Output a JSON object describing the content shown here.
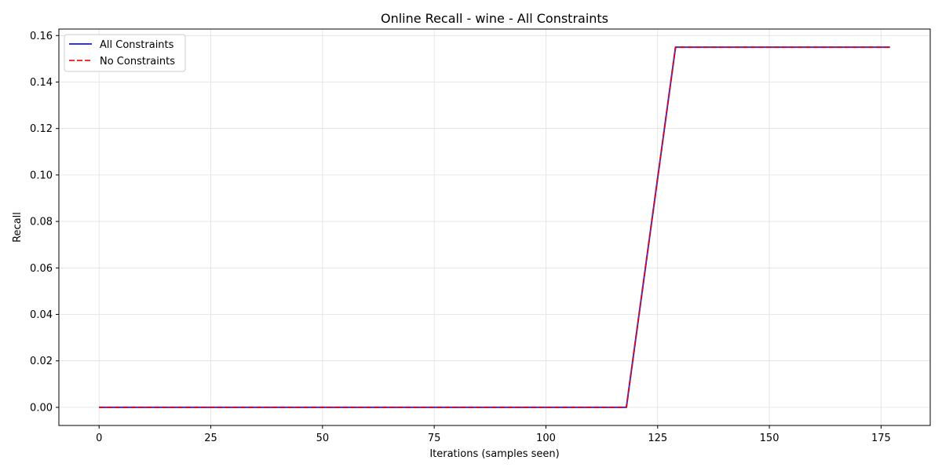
{
  "chart_data": {
    "type": "line",
    "title": "Online Recall - wine - All Constraints",
    "xlabel": "Iterations (samples seen)",
    "ylabel": "Recall",
    "xlim": [
      -9,
      186
    ],
    "ylim": [
      -0.0078,
      0.1628
    ],
    "xticks": [
      0,
      25,
      50,
      75,
      100,
      125,
      150,
      175
    ],
    "yticks": [
      0.0,
      0.02,
      0.04,
      0.06,
      0.08,
      0.1,
      0.12,
      0.14,
      0.16
    ],
    "ytick_labels": [
      "0.00",
      "0.02",
      "0.04",
      "0.06",
      "0.08",
      "0.10",
      "0.12",
      "0.14",
      "0.16"
    ],
    "grid": true,
    "legend_position": "top-left",
    "series": [
      {
        "name": "All Constraints",
        "color": "#0000dd",
        "style": "solid",
        "x": [
          0,
          118,
          129,
          177
        ],
        "y": [
          0.0,
          0.0,
          0.155,
          0.155
        ]
      },
      {
        "name": "No Constraints",
        "color": "#ee0000",
        "style": "dashed",
        "x": [
          0,
          118,
          129,
          177
        ],
        "y": [
          0.0,
          0.0,
          0.155,
          0.155
        ]
      }
    ]
  }
}
